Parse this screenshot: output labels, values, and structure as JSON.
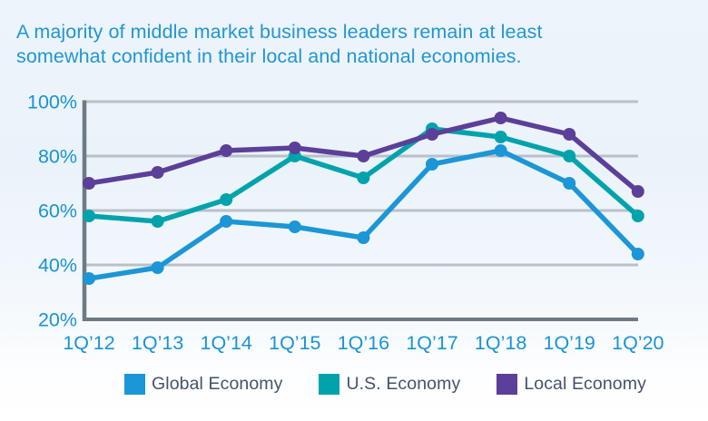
{
  "header": {
    "title_line1": "A majority of middle market business leaders remain at least",
    "title_line2": "somewhat confident in their local and national economies.",
    "title_color": "#2196d4"
  },
  "chart_data": {
    "type": "line",
    "x_labels": [
      "1Q’12",
      "1Q’13",
      "1Q’14",
      "1Q’15",
      "1Q’16",
      "1Q’17",
      "1Q’18",
      "1Q’19",
      "1Q’20"
    ],
    "y_tick_labels": [
      "100%",
      "80%",
      "60%",
      "40%",
      "20%"
    ],
    "y_tick_values": [
      100,
      80,
      60,
      40,
      20
    ],
    "ylim": [
      20,
      100
    ],
    "grid": true,
    "legend_position": "bottom",
    "series": [
      {
        "name": "Global Economy",
        "color": "#1b96d6",
        "values": [
          35,
          39,
          56,
          54,
          50,
          77,
          82,
          70,
          44
        ]
      },
      {
        "name": "U.S. Economy",
        "color": "#00a3ac",
        "values": [
          58,
          56,
          64,
          80,
          72,
          90,
          87,
          80,
          58
        ]
      },
      {
        "name": "Local Economy",
        "color": "#5c3f99",
        "values": [
          70,
          74,
          82,
          83,
          80,
          88,
          94,
          88,
          67
        ]
      }
    ],
    "style": {
      "grid_color": "#b9c0c8",
      "axis_color": "#6e7a86",
      "tick_label_color": "#1993d4"
    }
  }
}
